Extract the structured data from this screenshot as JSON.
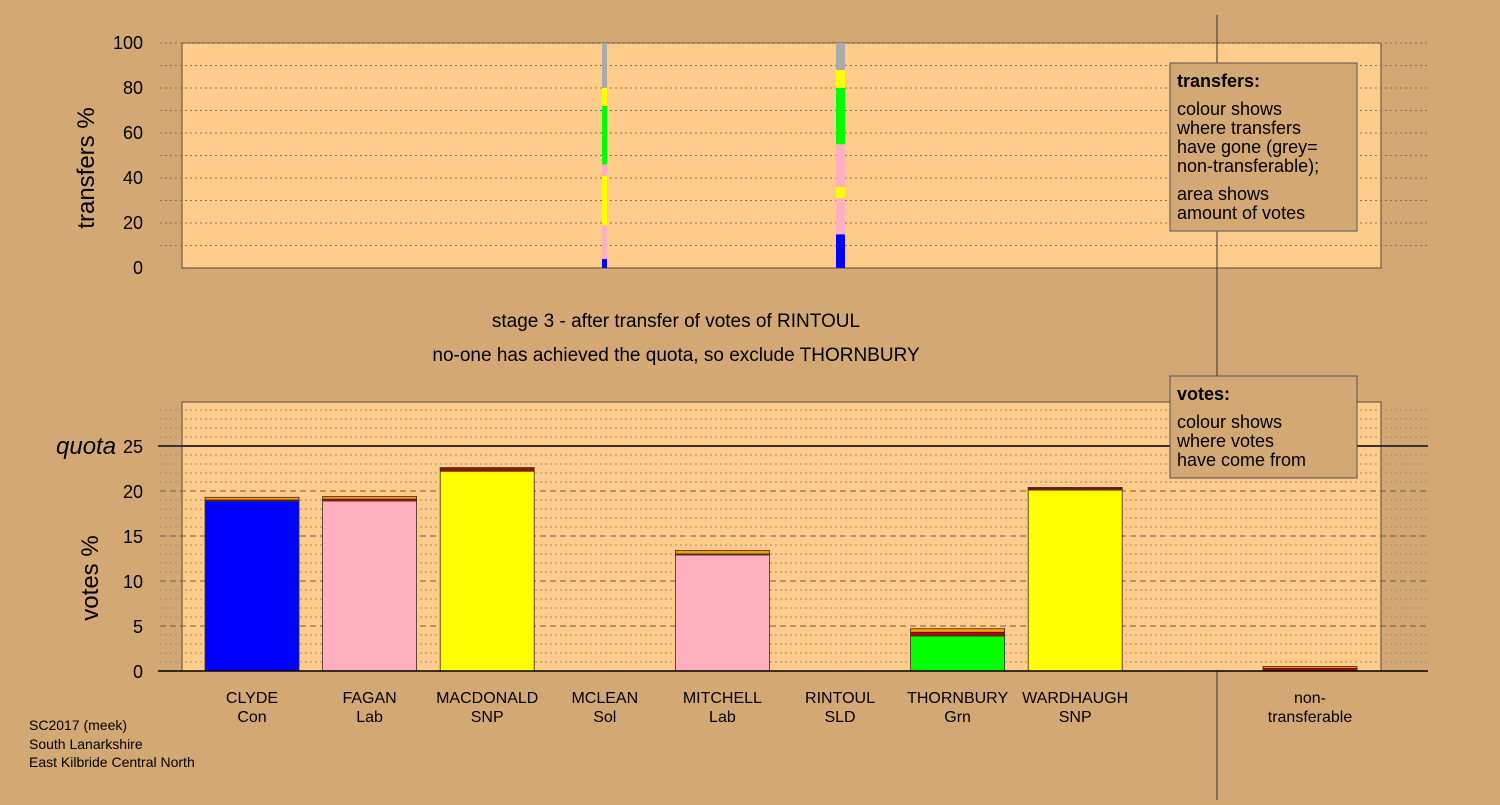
{
  "colors": {
    "background": "#D4A875",
    "plot_background": "#FFCC8C",
    "Con": "#0000FF",
    "Lab": "#FFAFC0",
    "SNP": "#FFFF00",
    "Grn": "#00FF00",
    "Sol": "#C00000",
    "SLD": "#FF9900",
    "non_transferable": "#AAAAAA"
  },
  "header": {
    "stage_line": "stage 3 - after transfer of votes of RINTOUL",
    "status_line": "no-one has achieved the quota, so exclude THORNBURY"
  },
  "footer": {
    "line1": "SC2017 (meek)",
    "line2": "South Lanarkshire",
    "line3": "East Kilbride Central North"
  },
  "legend_transfers": {
    "title": "transfers:",
    "line1": "colour shows",
    "line2": "where transfers",
    "line3": "have gone (grey=",
    "line4": "non-transferable);",
    "line5": "area shows",
    "line6": "amount of votes"
  },
  "legend_votes": {
    "title": "votes:",
    "line1": "colour shows",
    "line2": "where votes",
    "line3": "have come from"
  },
  "chart_data": [
    {
      "type": "bar",
      "ylabel": "transfers %",
      "ylim": [
        0,
        100
      ],
      "yticks": [
        "0",
        "20",
        "40",
        "60",
        "80",
        "100"
      ],
      "grid": true,
      "transfer_columns": [
        {
          "from": "MCLEAN",
          "segments": [
            {
              "party": "Con",
              "from": 0,
              "to": 4
            },
            {
              "party": "Lab",
              "from": 4,
              "to": 19
            },
            {
              "party": "SNP",
              "from": 19,
              "to": 41
            },
            {
              "party": "Lab",
              "from": 41,
              "to": 46
            },
            {
              "party": "Grn",
              "from": 46,
              "to": 72
            },
            {
              "party": "SNP",
              "from": 72,
              "to": 80
            },
            {
              "party": "non_transferable",
              "from": 80,
              "to": 100
            }
          ]
        },
        {
          "from": "RINTOUL",
          "segments": [
            {
              "party": "Con",
              "from": 0,
              "to": 15
            },
            {
              "party": "Lab",
              "from": 15,
              "to": 31
            },
            {
              "party": "SNP",
              "from": 31,
              "to": 36
            },
            {
              "party": "Lab",
              "from": 36,
              "to": 55
            },
            {
              "party": "Grn",
              "from": 55,
              "to": 80
            },
            {
              "party": "SNP",
              "from": 80,
              "to": 88
            },
            {
              "party": "non_transferable",
              "from": 88,
              "to": 100
            }
          ]
        }
      ]
    },
    {
      "type": "bar",
      "ylabel": "votes %",
      "ylim": [
        0,
        30
      ],
      "yticks": [
        "0",
        "5",
        "10",
        "15",
        "20",
        "25"
      ],
      "quota": 25,
      "quota_label": "quota",
      "grid": true,
      "categories": [
        {
          "name": "CLYDE",
          "party": "Con"
        },
        {
          "name": "FAGAN",
          "party": "Lab"
        },
        {
          "name": "MACDONALD",
          "party": "SNP"
        },
        {
          "name": "MCLEAN",
          "party": "Sol"
        },
        {
          "name": "MITCHELL",
          "party": "Lab"
        },
        {
          "name": "RINTOUL",
          "party": "SLD"
        },
        {
          "name": "THORNBURY",
          "party": "Grn"
        },
        {
          "name": "WARDHAUGH",
          "party": "SNP"
        }
      ],
      "stacks": [
        [
          {
            "src": "Con",
            "v": 18.9
          },
          {
            "src": "Sol",
            "v": 0.1
          },
          {
            "src": "SLD",
            "v": 0.3
          }
        ],
        [
          {
            "src": "Lab",
            "v": 18.9
          },
          {
            "src": "Sol",
            "v": 0.2
          },
          {
            "src": "SLD",
            "v": 0.3
          }
        ],
        [
          {
            "src": "SNP",
            "v": 22.2
          },
          {
            "src": "Sol",
            "v": 0.3
          },
          {
            "src": "SLD",
            "v": 0.1
          }
        ],
        [],
        [
          {
            "src": "Lab",
            "v": 12.9
          },
          {
            "src": "Sol",
            "v": 0.1
          },
          {
            "src": "SLD",
            "v": 0.4
          }
        ],
        [],
        [
          {
            "src": "Grn",
            "v": 3.9
          },
          {
            "src": "Sol",
            "v": 0.4
          },
          {
            "src": "SLD",
            "v": 0.4
          }
        ],
        [
          {
            "src": "SNP",
            "v": 20.1
          },
          {
            "src": "Sol",
            "v": 0.2
          },
          {
            "src": "SLD",
            "v": 0.1
          }
        ]
      ],
      "non_transferable": {
        "label_line1": "non-",
        "label_line2": "transferable",
        "stack": [
          {
            "src": "Sol",
            "v": 0.3
          },
          {
            "src": "SLD",
            "v": 0.2
          }
        ]
      }
    }
  ]
}
